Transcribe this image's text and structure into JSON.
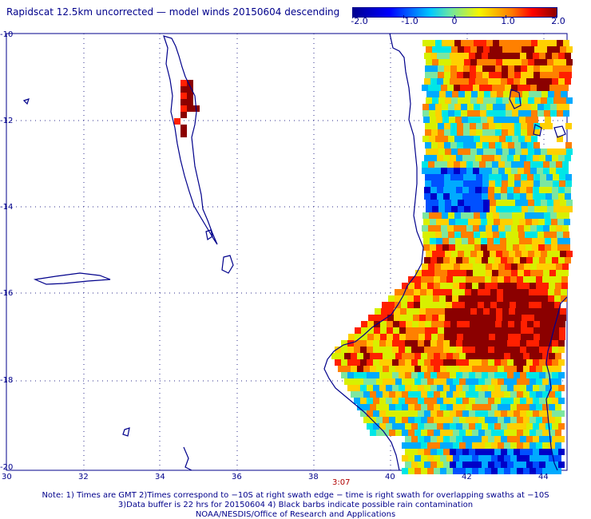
{
  "title": "Rapidscat 12.5km uncorrected — model winds 20150604 descending",
  "colorbar": {
    "ticks": [
      "-2.0",
      "-1.0",
      "0",
      "1.0",
      "2.0"
    ],
    "colors": [
      "#000090",
      "#0000ff",
      "#00c8ff",
      "#6ee6a0",
      "#f5f500",
      "#ff7a00",
      "#ff0000",
      "#8b0000"
    ]
  },
  "axes": {
    "lon_ticks": [
      "30",
      "32",
      "34",
      "36",
      "38",
      "40",
      "42",
      "44"
    ],
    "lat_ticks": [
      "-10",
      "-12",
      "-14",
      "-16",
      "-18",
      "-20"
    ]
  },
  "timestamp": "3:07",
  "footer": {
    "line1": "Note: 1) Times are GMT 2)Times correspond to −10S at right swath edge − time is right swath for overlapping swaths at −10S",
    "line2": "3)Data buffer is 22 hrs for 20150604 4) Black barbs indicate possible rain contamination",
    "line3": "NOAA/NESDIS/Office of Research and Applications"
  }
}
